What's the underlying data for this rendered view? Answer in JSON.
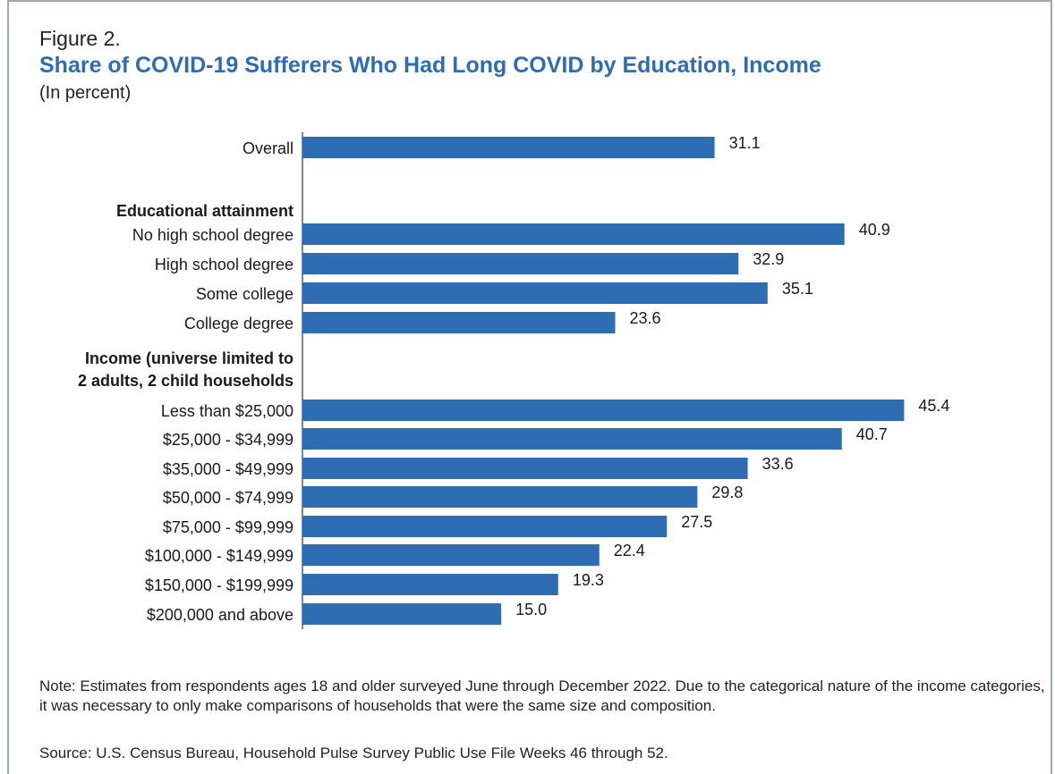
{
  "figure": {
    "label": "Figure 2.",
    "title": "Share of COVID-19 Sufferers Who Had Long COVID by Education, Income",
    "subtitle": "(In percent)",
    "note": "Note: Estimates from respondents ages 18 and older surveyed June through December 2022. Due to the categorical nature of the income categories, it was necessary to only make comparisons of households that were the same size and composition.",
    "source": "Source: U.S. Census Bureau, Household Pulse Survey Public Use File Weeks 46 through 52."
  },
  "colors": {
    "bar": "#2e6db4",
    "title": "#2e6db4"
  },
  "chart_data": {
    "type": "bar",
    "orientation": "horizontal",
    "title": "Share of COVID-19 Sufferers Who Had Long COVID by Education, Income",
    "subtitle": "(In percent)",
    "xlabel": "",
    "ylabel": "",
    "xlim": [
      0,
      50
    ],
    "grid": false,
    "legend": "none",
    "rows": [
      {
        "kind": "bar",
        "label": "Overall",
        "value": 31.1,
        "value_label": "31.1"
      },
      {
        "kind": "heading",
        "label": "Educational attainment"
      },
      {
        "kind": "bar",
        "label": "No high school degree",
        "value": 40.9,
        "value_label": "40.9"
      },
      {
        "kind": "bar",
        "label": "High school degree",
        "value": 32.9,
        "value_label": "32.9"
      },
      {
        "kind": "bar",
        "label": "Some college",
        "value": 35.1,
        "value_label": "35.1"
      },
      {
        "kind": "bar",
        "label": "College degree",
        "value": 23.6,
        "value_label": "23.6"
      },
      {
        "kind": "heading",
        "label": "Income (universe limited to",
        "label2": "2 adults, 2 child households"
      },
      {
        "kind": "bar",
        "label": "Less than $25,000",
        "value": 45.4,
        "value_label": "45.4"
      },
      {
        "kind": "bar",
        "label": "$25,000 - $34,999",
        "value": 40.7,
        "value_label": "40.7"
      },
      {
        "kind": "bar",
        "label": "$35,000 - $49,999",
        "value": 33.6,
        "value_label": "33.6"
      },
      {
        "kind": "bar",
        "label": "$50,000 - $74,999",
        "value": 29.8,
        "value_label": "29.8"
      },
      {
        "kind": "bar",
        "label": "$75,000 - $99,999",
        "value": 27.5,
        "value_label": "27.5"
      },
      {
        "kind": "bar",
        "label": "$100,000 - $149,999",
        "value": 22.4,
        "value_label": "22.4"
      },
      {
        "kind": "bar",
        "label": "$150,000 - $199,999",
        "value": 19.3,
        "value_label": "19.3"
      },
      {
        "kind": "bar",
        "label": "$200,000 and above",
        "value": 15.0,
        "value_label": "15.0"
      }
    ]
  }
}
